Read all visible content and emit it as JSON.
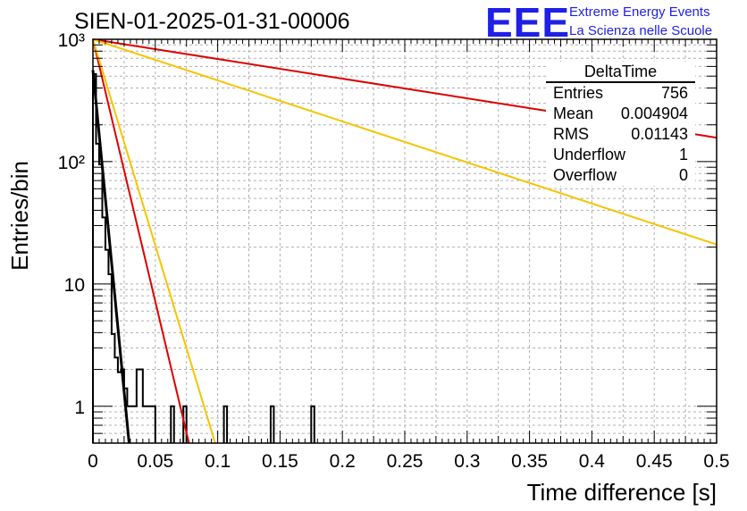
{
  "header": {
    "run_title": "SIEN-01-2025-01-31-00006",
    "logo": "EEE",
    "logo_line1": "Extreme Energy Events",
    "logo_line2": "La Scienza nelle Scuole"
  },
  "stats": {
    "title": "DeltaTime",
    "rows": [
      {
        "label": "Entries",
        "value": "756"
      },
      {
        "label": "Mean",
        "value": "0.004904"
      },
      {
        "label": "RMS",
        "value": "0.01143"
      },
      {
        "label": "Underflow",
        "value": "1"
      },
      {
        "label": "Overflow",
        "value": "0"
      }
    ]
  },
  "colors": {
    "histogram": "#000000",
    "fit_black": "#000000",
    "fit_red": "#dd0000",
    "fit_orange": "#f5c400",
    "logo": "#1f1fe6",
    "grid": "#b0b0b0"
  },
  "chart_data": {
    "type": "histogram",
    "title": "SIEN-01-2025-01-31-00006",
    "xlabel": "Time difference [s]",
    "ylabel": "Entries/bin",
    "xlim": [
      0,
      0.5
    ],
    "ylim": [
      0.5,
      1000
    ],
    "yscale": "log",
    "grid": true,
    "x_ticks": [
      "0",
      "0.05",
      "0.1",
      "0.15",
      "0.2",
      "0.25",
      "0.3",
      "0.35",
      "0.4",
      "0.45",
      "0.5"
    ],
    "x_tick_values": [
      0,
      0.05,
      0.1,
      0.15,
      0.2,
      0.25,
      0.3,
      0.35,
      0.4,
      0.45,
      0.5
    ],
    "y_ticks": [
      "1",
      "10",
      "10²",
      "10³"
    ],
    "y_tick_values": [
      1,
      10,
      100,
      1000
    ],
    "bin_width": 0.0025,
    "bins": [
      {
        "x": 0.0,
        "y": 520
      },
      {
        "x": 0.0025,
        "y": 140
      },
      {
        "x": 0.005,
        "y": 95
      },
      {
        "x": 0.0075,
        "y": 35
      },
      {
        "x": 0.01,
        "y": 19
      },
      {
        "x": 0.0125,
        "y": 12
      },
      {
        "x": 0.015,
        "y": 3.9
      },
      {
        "x": 0.0175,
        "y": 2.5
      },
      {
        "x": 0.02,
        "y": 1.9
      },
      {
        "x": 0.0225,
        "y": 2
      },
      {
        "x": 0.025,
        "y": 1.4
      },
      {
        "x": 0.0275,
        "y": 1
      },
      {
        "x": 0.03,
        "y": 1
      },
      {
        "x": 0.0325,
        "y": 1
      },
      {
        "x": 0.035,
        "y": 2
      },
      {
        "x": 0.0375,
        "y": 2
      },
      {
        "x": 0.04,
        "y": 1
      },
      {
        "x": 0.0425,
        "y": 1
      },
      {
        "x": 0.045,
        "y": 1
      },
      {
        "x": 0.0475,
        "y": 1
      },
      {
        "x": 0.0625,
        "y": 1
      },
      {
        "x": 0.0625,
        "y": 1
      },
      {
        "x": 0.0725,
        "y": 1
      },
      {
        "x": 0.105,
        "y": 1
      },
      {
        "x": 0.1425,
        "y": 1
      },
      {
        "x": 0.175,
        "y": 1
      }
    ],
    "series": [
      {
        "name": "fit-black",
        "x": [
          0,
          0.029
        ],
        "y": [
          560,
          0.5
        ]
      },
      {
        "name": "fit-red-steep",
        "x": [
          0,
          0.077
        ],
        "y": [
          1000,
          0.5
        ]
      },
      {
        "name": "fit-orange-steep",
        "x": [
          0,
          0.098
        ],
        "y": [
          1000,
          0.5
        ]
      },
      {
        "name": "fit-red-shallow",
        "x": [
          0,
          0.5
        ],
        "y": [
          1000,
          157
        ]
      },
      {
        "name": "fit-orange-shallow",
        "x": [
          0,
          0.5
        ],
        "y": [
          1000,
          21
        ]
      }
    ]
  }
}
